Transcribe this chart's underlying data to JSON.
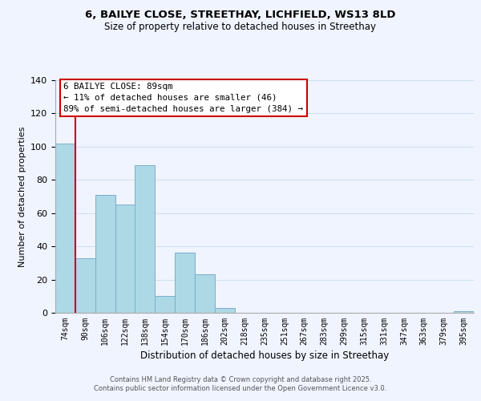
{
  "title_line1": "6, BAILYE CLOSE, STREETHAY, LICHFIELD, WS13 8LD",
  "title_line2": "Size of property relative to detached houses in Streethay",
  "xlabel": "Distribution of detached houses by size in Streethay",
  "ylabel": "Number of detached properties",
  "categories": [
    "74sqm",
    "90sqm",
    "106sqm",
    "122sqm",
    "138sqm",
    "154sqm",
    "170sqm",
    "186sqm",
    "202sqm",
    "218sqm",
    "235sqm",
    "251sqm",
    "267sqm",
    "283sqm",
    "299sqm",
    "315sqm",
    "331sqm",
    "347sqm",
    "363sqm",
    "379sqm",
    "395sqm"
  ],
  "values": [
    102,
    33,
    71,
    65,
    89,
    10,
    36,
    23,
    3,
    0,
    0,
    0,
    0,
    0,
    0,
    0,
    0,
    0,
    0,
    0,
    1
  ],
  "bar_color": "#add8e6",
  "bar_edge_color": "#7ab0c8",
  "ylim": [
    0,
    140
  ],
  "yticks": [
    0,
    20,
    40,
    60,
    80,
    100,
    120,
    140
  ],
  "property_line_x": 1,
  "property_line_color": "#cc0000",
  "annotation_title": "6 BAILYE CLOSE: 89sqm",
  "annotation_line1": "← 11% of detached houses are smaller (46)",
  "annotation_line2": "89% of semi-detached houses are larger (384) →",
  "annotation_box_color": "#ffffff",
  "annotation_box_edge": "#cc0000",
  "footer_line1": "Contains HM Land Registry data © Crown copyright and database right 2025.",
  "footer_line2": "Contains public sector information licensed under the Open Government Licence v3.0.",
  "bg_color": "#f0f4ff"
}
